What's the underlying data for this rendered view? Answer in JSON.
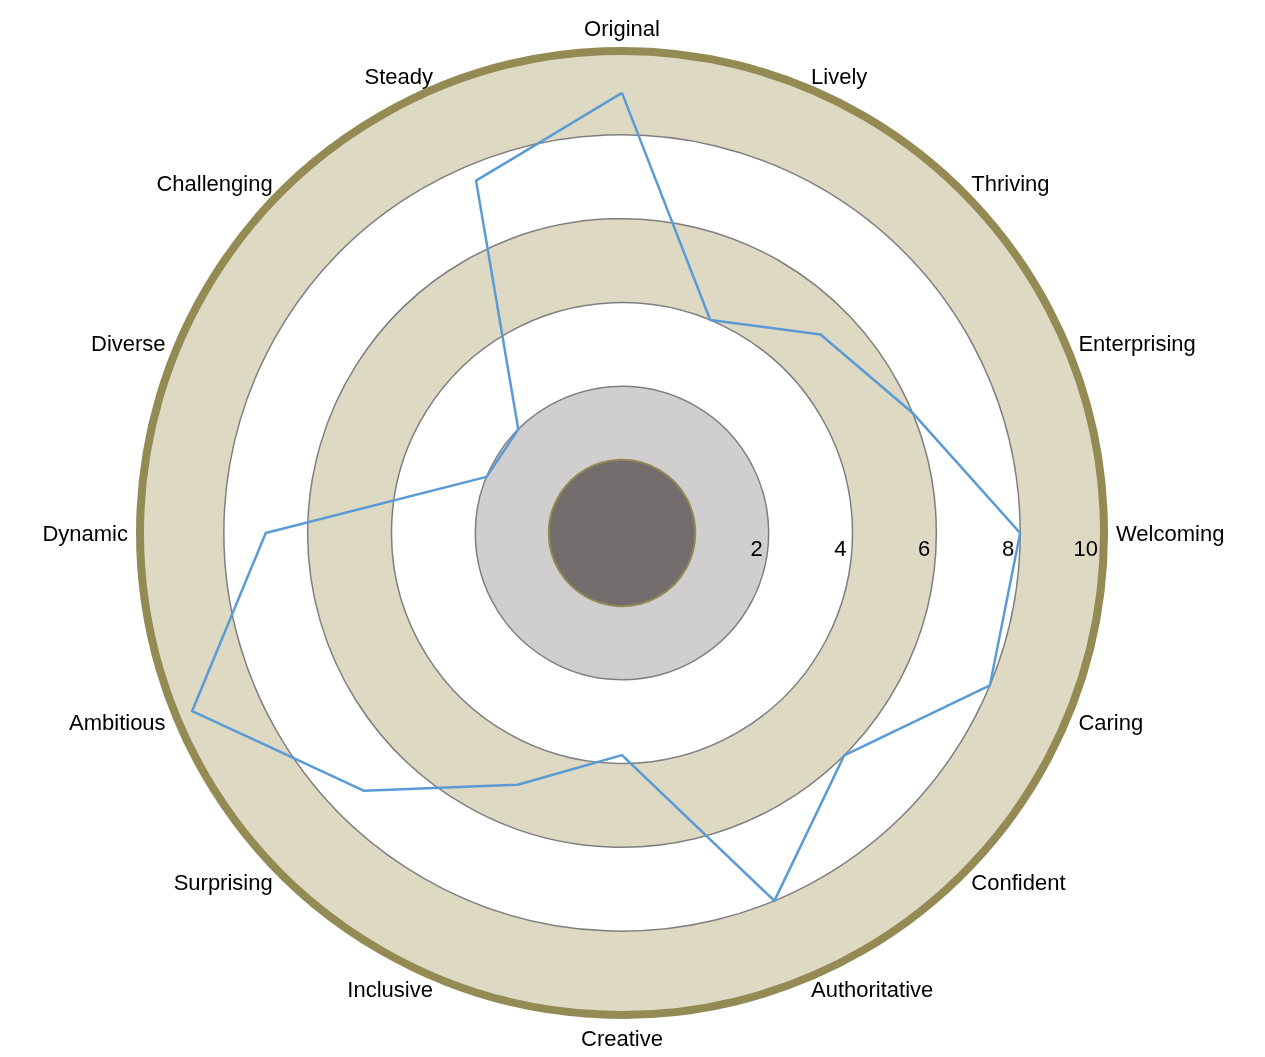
{
  "chart_data": {
    "type": "radar",
    "categories": [
      "Original",
      "Lively",
      "Thriving",
      "Enterprising",
      "Welcoming",
      "Caring",
      "Confident",
      "Authoritative",
      "Creative",
      "Inclusive",
      "Surprising",
      "Ambitious",
      "Dynamic",
      "Diverse",
      "Challenging",
      "Steady"
    ],
    "series": [
      {
        "color": "#5b9bd5",
        "values": [
          9,
          4,
          5.2,
          6,
          8,
          8,
          6,
          8,
          3.8,
          5,
          7.2,
          9.6,
          7,
          2,
          2,
          7.6
        ]
      }
    ],
    "ylim": [
      -1.5,
      10
    ],
    "yticks": [
      2,
      4,
      6,
      8,
      10
    ],
    "grid": true
  }
}
